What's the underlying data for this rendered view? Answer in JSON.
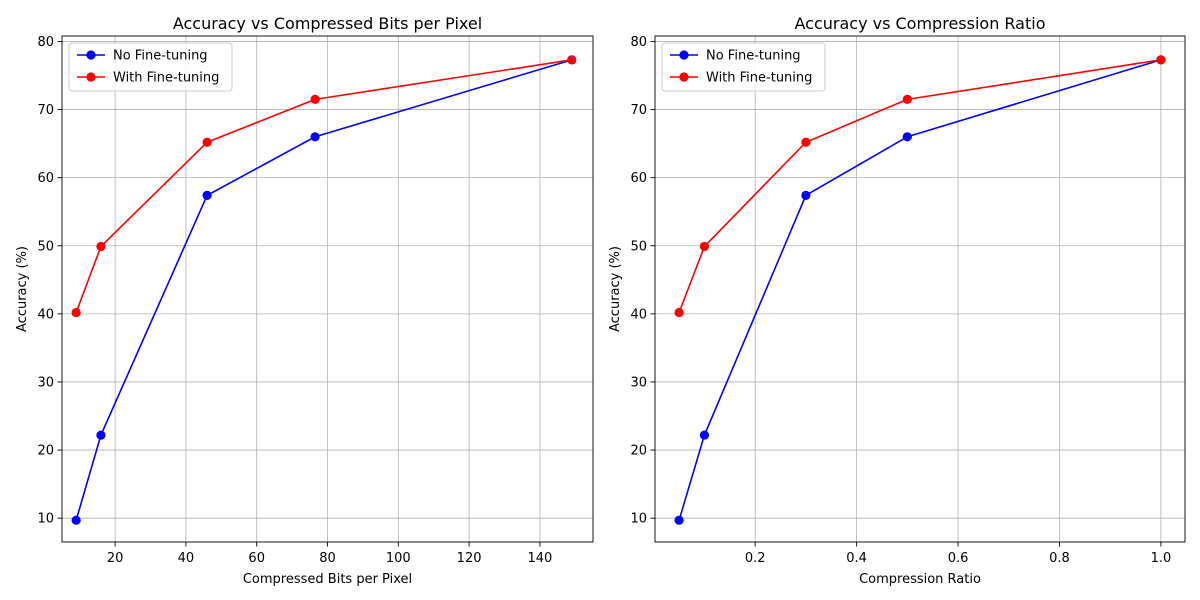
{
  "chart_data": [
    {
      "type": "line",
      "title": "Accuracy vs Compressed Bits per Pixel",
      "xlabel": "Compressed Bits per Pixel",
      "ylabel": "Accuracy (%)",
      "xlim": [
        5,
        155
      ],
      "ylim": [
        6.5,
        80.8
      ],
      "xticks": [
        20,
        40,
        60,
        80,
        100,
        120,
        140
      ],
      "xtick_labels": [
        "20",
        "40",
        "60",
        "80",
        "100",
        "120",
        "140"
      ],
      "yticks": [
        10,
        20,
        30,
        40,
        50,
        60,
        70,
        80
      ],
      "ytick_labels": [
        "10",
        "20",
        "30",
        "40",
        "50",
        "60",
        "70",
        "80"
      ],
      "grid": true,
      "legend": "top-left",
      "series": [
        {
          "name": "No Fine-tuning",
          "color": "#0000ff",
          "x": [
            9.0,
            16.0,
            46.0,
            76.5,
            149.0
          ],
          "y": [
            9.7,
            22.2,
            57.4,
            66.0,
            77.3
          ]
        },
        {
          "name": "With Fine-tuning",
          "color": "#ff0000",
          "x": [
            9.0,
            16.0,
            46.0,
            76.5,
            149.0
          ],
          "y": [
            40.2,
            49.9,
            65.2,
            71.5,
            77.3
          ]
        }
      ]
    },
    {
      "type": "line",
      "title": "Accuracy vs Compression Ratio",
      "xlabel": "Compression Ratio",
      "ylabel": "Accuracy (%)",
      "xlim": [
        0.0025,
        1.0475
      ],
      "ylim": [
        6.5,
        80.8
      ],
      "xticks": [
        0.2,
        0.4,
        0.6,
        0.8,
        1.0
      ],
      "xtick_labels": [
        "0.2",
        "0.4",
        "0.6",
        "0.8",
        "1.0"
      ],
      "yticks": [
        10,
        20,
        30,
        40,
        50,
        60,
        70,
        80
      ],
      "ytick_labels": [
        "10",
        "20",
        "30",
        "40",
        "50",
        "60",
        "70",
        "80"
      ],
      "grid": true,
      "legend": "top-left",
      "series": [
        {
          "name": "No Fine-tuning",
          "color": "#0000ff",
          "x": [
            0.05,
            0.1,
            0.3,
            0.5,
            1.0
          ],
          "y": [
            9.7,
            22.2,
            57.4,
            66.0,
            77.3
          ]
        },
        {
          "name": "With Fine-tuning",
          "color": "#ff0000",
          "x": [
            0.05,
            0.1,
            0.3,
            0.5,
            1.0
          ],
          "y": [
            40.2,
            49.9,
            65.2,
            71.5,
            77.3
          ]
        }
      ]
    }
  ]
}
